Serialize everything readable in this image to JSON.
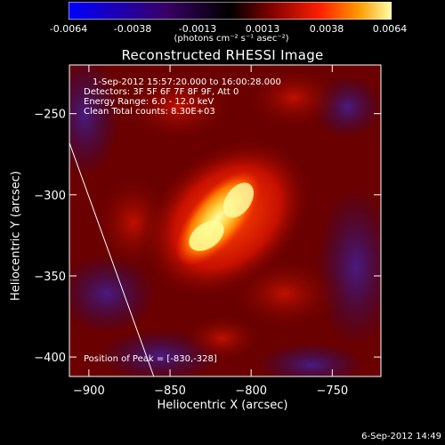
{
  "colorbar": {
    "min": -0.0064,
    "max": 0.0064,
    "ticks": [
      "-0.0064",
      "-0.0038",
      "-0.0013",
      "0.0013",
      "0.0038",
      "0.0064"
    ],
    "unit_label": "(photons cm⁻² s⁻¹ asec⁻²)",
    "colors": [
      "#0000ff",
      "#3a0068",
      "#000000",
      "#7a0000",
      "#ff2000",
      "#ff9a00",
      "#ffffa8"
    ]
  },
  "chart_data": {
    "type": "heatmap",
    "title": "Reconstructed RHESSI Image",
    "xlabel": "Heliocentric X (arcsec)",
    "ylabel": "Heliocentric Y (arcsec)",
    "xlim": [
      -912,
      -720
    ],
    "ylim": [
      -412,
      -220
    ],
    "xticks": [
      -900,
      -850,
      -800,
      -750
    ],
    "yticks": [
      -400,
      -350,
      -300,
      -250
    ],
    "peak": [
      -830,
      -328
    ],
    "limb_line": [
      [
        -912,
        -268
      ],
      [
        -860,
        -412
      ]
    ]
  },
  "info": {
    "time_range": "1-Sep-2012 15:57:20.000 to 16:00:28.000",
    "detectors": "Detectors: 3F 5F 6F 7F 8F 9F, Att 0",
    "energy": "Energy Range: 6.0 - 12.0 keV",
    "clean": "Clean     Total counts: 8.30E+03",
    "peak_text": "Position of Peak = [-830,-328]"
  },
  "timestamp": "6-Sep-2012 14:49"
}
